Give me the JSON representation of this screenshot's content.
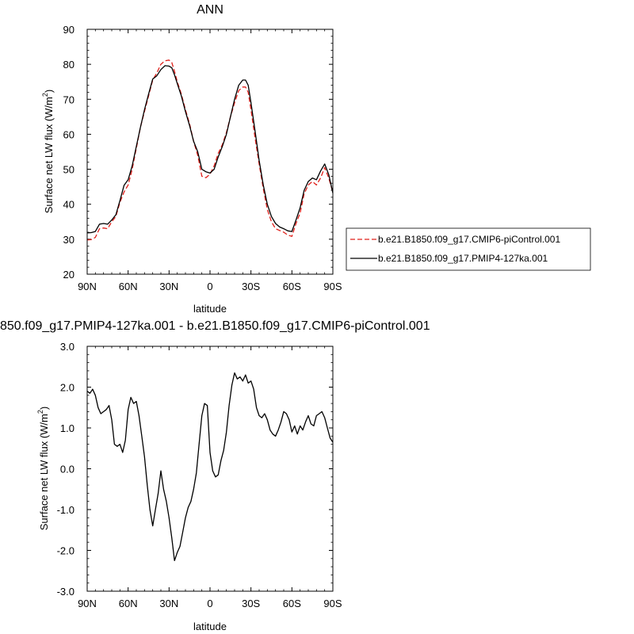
{
  "chart_data": [
    {
      "type": "line",
      "title": "ANN",
      "xlabel": "latitude",
      "ylabel": "Surface net LW flux (W/m",
      "ylabel_sup": "2",
      "ylabel_close": ")",
      "xlim": [
        90,
        -90
      ],
      "ylim": [
        20,
        90
      ],
      "xticks": [
        90,
        60,
        30,
        0,
        -30,
        -60,
        -90
      ],
      "xtick_labels": [
        "90N",
        "60N",
        "30N",
        "0",
        "30S",
        "60S",
        "90S"
      ],
      "yticks": [
        20,
        30,
        40,
        50,
        60,
        70,
        80,
        90
      ],
      "ytick_labels": [
        "20",
        "30",
        "40",
        "50",
        "60",
        "70",
        "80",
        "90"
      ],
      "legend_position": "right",
      "series": [
        {
          "name": "b.e21.B1850.f09_g17.CMIP6-piControl.001",
          "color": "#e0201b",
          "dash": "dashed",
          "x": [
            90,
            87,
            84,
            81,
            78,
            75,
            72,
            69,
            66,
            63,
            60,
            57,
            54,
            51,
            48,
            45,
            42,
            39,
            36,
            33,
            30,
            28,
            26,
            24,
            21,
            18,
            15,
            12,
            9,
            6,
            3,
            0,
            -3,
            -6,
            -9,
            -12,
            -15,
            -18,
            -21,
            -24,
            -26,
            -28,
            -30,
            -33,
            -36,
            -39,
            -42,
            -45,
            -48,
            -51,
            -54,
            -57,
            -60,
            -63,
            -66,
            -69,
            -72,
            -75,
            -78,
            -81,
            -84,
            -87,
            -90
          ],
          "y": [
            29.8,
            29.9,
            30.5,
            33,
            33.2,
            33,
            35,
            36.5,
            40.5,
            43.5,
            45.5,
            50,
            56,
            62,
            66.5,
            71,
            75.5,
            77.5,
            80,
            81,
            81.2,
            80.5,
            78,
            75,
            71.5,
            67,
            63,
            58,
            54,
            48,
            47.6,
            48.6,
            51,
            54.5,
            57,
            60.5,
            65,
            69,
            72.5,
            73.5,
            73.5,
            72,
            67,
            59,
            51.5,
            44.5,
            38.5,
            35,
            33,
            32.5,
            32,
            31.2,
            30.8,
            34.5,
            37.5,
            43,
            45.5,
            46.5,
            45.5,
            47.5,
            50.5,
            47.5,
            43.5
          ]
        },
        {
          "name": "b.e21.B1850.f09_g17.PMIP4-127ka.001",
          "color": "#000000",
          "dash": "solid",
          "x": [
            90,
            87,
            84,
            81,
            78,
            75,
            72,
            69,
            66,
            63,
            60,
            57,
            54,
            51,
            48,
            45,
            42,
            39,
            36,
            33,
            30,
            28,
            26,
            24,
            21,
            18,
            15,
            12,
            9,
            6,
            3,
            0,
            -3,
            -6,
            -9,
            -12,
            -15,
            -18,
            -21,
            -24,
            -26,
            -28,
            -30,
            -33,
            -36,
            -39,
            -42,
            -45,
            -48,
            -51,
            -54,
            -57,
            -60,
            -63,
            -66,
            -69,
            -72,
            -75,
            -78,
            -81,
            -84,
            -87,
            -90
          ],
          "y": [
            31.8,
            31.9,
            32.2,
            34.3,
            34.5,
            34.3,
            35.5,
            37,
            41,
            45.4,
            47,
            51,
            56.5,
            62,
            67,
            71.5,
            75.8,
            76.7,
            78.5,
            79.6,
            79.5,
            79,
            77,
            74.5,
            71,
            66.5,
            62.5,
            58,
            55,
            50,
            49.3,
            48.9,
            50,
            53.5,
            56.5,
            60,
            65,
            70,
            74,
            75.5,
            75.5,
            74,
            69,
            61,
            52.5,
            45.5,
            40,
            36.5,
            34.5,
            33.5,
            33,
            32.4,
            32.2,
            35.5,
            39,
            44,
            46.5,
            47.5,
            47,
            49.5,
            51.5,
            48.5,
            43.2
          ]
        }
      ]
    },
    {
      "type": "line",
      "title": "850.f09_g17.PMIP4-127ka.001 - b.e21.B1850.f09_g17.CMIP6-piControl.001",
      "xlabel": "latitude",
      "ylabel": "Surface net LW flux (W/m",
      "ylabel_sup": "2",
      "ylabel_close": ")",
      "xlim": [
        90,
        -90
      ],
      "ylim": [
        -3,
        3
      ],
      "xticks": [
        90,
        60,
        30,
        0,
        -30,
        -60,
        -90
      ],
      "xtick_labels": [
        "90N",
        "60N",
        "30N",
        "0",
        "30S",
        "60S",
        "90S"
      ],
      "yticks": [
        -3,
        -2,
        -1,
        0,
        1,
        2,
        3
      ],
      "ytick_labels": [
        "-3.0",
        "-2.0",
        "-1.0",
        "0.0",
        "1.0",
        "2.0",
        "3.0"
      ],
      "series": [
        {
          "color": "#000000",
          "dash": "solid",
          "x": [
            90,
            88,
            86,
            84,
            82,
            80,
            78,
            76,
            74,
            72,
            70,
            68,
            66,
            64,
            62,
            60,
            58,
            56,
            54,
            52,
            50,
            48,
            46,
            44,
            42,
            40,
            38,
            36,
            34,
            32,
            30,
            28,
            26,
            24,
            22,
            20,
            18,
            16,
            14,
            12,
            10,
            8,
            6,
            4,
            2,
            0,
            -2,
            -4,
            -6,
            -8,
            -10,
            -12,
            -14,
            -16,
            -18,
            -20,
            -22,
            -24,
            -26,
            -28,
            -30,
            -32,
            -34,
            -36,
            -38,
            -40,
            -42,
            -44,
            -46,
            -48,
            -50,
            -52,
            -54,
            -56,
            -58,
            -60,
            -62,
            -64,
            -66,
            -68,
            -70,
            -72,
            -74,
            -76,
            -78,
            -80,
            -82,
            -84,
            -86,
            -88,
            -90
          ],
          "y": [
            1.9,
            1.85,
            1.95,
            1.8,
            1.5,
            1.35,
            1.4,
            1.45,
            1.55,
            1.2,
            0.6,
            0.55,
            0.6,
            0.4,
            0.7,
            1.45,
            1.75,
            1.6,
            1.65,
            1.3,
            0.8,
            0.3,
            -0.4,
            -1.0,
            -1.4,
            -1.0,
            -0.6,
            -0.05,
            -0.5,
            -0.8,
            -1.2,
            -1.7,
            -2.25,
            -2.05,
            -1.9,
            -1.55,
            -1.2,
            -0.95,
            -0.8,
            -0.5,
            -0.1,
            0.6,
            1.3,
            1.6,
            1.55,
            0.4,
            -0.05,
            -0.2,
            -0.15,
            0.2,
            0.45,
            0.9,
            1.55,
            2.05,
            2.35,
            2.2,
            2.25,
            2.15,
            2.3,
            2.1,
            2.15,
            1.95,
            1.5,
            1.3,
            1.25,
            1.35,
            1.2,
            0.95,
            0.85,
            0.8,
            0.95,
            1.15,
            1.4,
            1.35,
            1.2,
            0.9,
            1.05,
            0.85,
            1.05,
            0.95,
            1.15,
            1.3,
            1.1,
            1.05,
            1.3,
            1.35,
            1.4,
            1.25,
            1.0,
            0.75,
            0.65
          ]
        }
      ]
    }
  ]
}
